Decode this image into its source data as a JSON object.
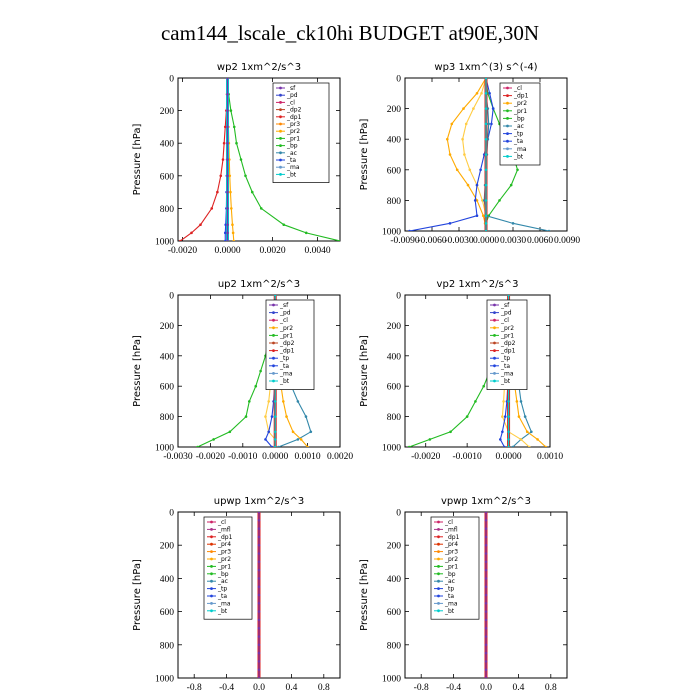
{
  "figure_title": "cam144_lscale_ck10hi  BUDGET at90E,30N",
  "chart_data": [
    {
      "type": "line",
      "title": "wp2   1xm^2/s^3",
      "ylabel": "Pressure [hPa]",
      "xlim": [
        -0.0022,
        0.005
      ],
      "ylim": [
        1000,
        0
      ],
      "xticks": [
        -0.002,
        0,
        0.002,
        0.004
      ],
      "xtick_labels": [
        "-0.0020",
        "0.0000",
        "0.0020",
        "0.0040"
      ],
      "yticks": [
        0,
        200,
        400,
        600,
        800,
        1000
      ],
      "legend": [
        "_sf",
        "_pd",
        "_cl",
        "_dp2",
        "_dp1",
        "_pr3",
        "_pr2",
        "_pr1",
        "_bp",
        "_ac",
        "_ta",
        "_ma",
        "_bt"
      ],
      "y": [
        0,
        100,
        200,
        300,
        400,
        500,
        600,
        700,
        800,
        900,
        950,
        1000
      ],
      "series": [
        {
          "name": "_pr1",
          "color": "#22bb22",
          "values": [
            0,
            5e-05,
            0.00015,
            0.0003,
            0.0004,
            0.0006,
            0.0008,
            0.0011,
            0.0015,
            0.0025,
            0.0035,
            0.005
          ]
        },
        {
          "name": "_dp1",
          "color": "#dd2222",
          "values": [
            0,
            -2e-05,
            -5e-05,
            -0.0001,
            -0.00015,
            -0.0002,
            -0.0003,
            -0.00045,
            -0.0007,
            -0.0012,
            -0.0016,
            -0.0021
          ]
        },
        {
          "name": "_pr3",
          "color": "#ffaa00",
          "values": [
            0,
            1e-05,
            2e-05,
            4e-05,
            6e-05,
            8e-05,
            0.0001,
            0.00013,
            0.00017,
            0.00022,
            0.00025,
            0.00028
          ]
        },
        {
          "name": "_ta",
          "color": "#2244dd",
          "values": [
            0,
            0,
            0,
            -1e-05,
            -1e-05,
            -2e-05,
            -3e-05,
            -4e-05,
            -5e-05,
            -8e-05,
            -0.0001,
            -0.0001
          ]
        },
        {
          "name": "_cl",
          "color": "#cc2266",
          "values": [
            0,
            0,
            0,
            0,
            0,
            0,
            0,
            0,
            0,
            0,
            0,
            0
          ]
        },
        {
          "name": "_bt",
          "color": "#00cccc",
          "values": [
            0,
            0,
            0,
            0,
            0,
            0,
            0,
            0,
            0,
            0,
            0,
            0
          ]
        },
        {
          "name": "_sf",
          "color": "#7733aa",
          "values": [
            0,
            0,
            0,
            0,
            0,
            0,
            0,
            0,
            0,
            0,
            0,
            0
          ]
        }
      ]
    },
    {
      "type": "line",
      "title": "wp3   1xm^(3) s^(-4)",
      "ylabel": "Pressure [hPa]",
      "xlim": [
        -0.009,
        0.009
      ],
      "ylim": [
        1000,
        0
      ],
      "xticks": [
        -0.009,
        -0.006,
        -0.003,
        0,
        0.003,
        0.006,
        0.009
      ],
      "xtick_labels": [
        "-0.0090",
        "-0.0060",
        "-0.0030",
        "0.0000",
        "0.0030",
        "0.0060",
        "0.0090"
      ],
      "yticks": [
        0,
        200,
        400,
        600,
        800,
        1000
      ],
      "legend": [
        "_cl",
        "_dp1",
        "_pr2",
        "_pr1",
        "_bp",
        "_ac",
        "_tp",
        "_ta",
        "_ma",
        "_bt"
      ],
      "y": [
        0,
        100,
        200,
        300,
        400,
        500,
        600,
        700,
        800,
        900,
        950,
        1000
      ],
      "series": [
        {
          "name": "_bp",
          "color": "#22bb22",
          "values": [
            0,
            0.0002,
            0.0008,
            0.0015,
            0.0022,
            0.003,
            0.0035,
            0.0028,
            0.0015,
            0.0003,
            0,
            0
          ]
        },
        {
          "name": "_pr2",
          "color": "#ffaa00",
          "values": [
            0,
            -0.001,
            -0.0025,
            -0.0038,
            -0.0043,
            -0.004,
            -0.0032,
            -0.002,
            -0.001,
            -0.0003,
            -0.0001,
            0
          ]
        },
        {
          "name": "_pr1",
          "color": "#ffcc44",
          "values": [
            0,
            -0.0005,
            -0.0014,
            -0.0022,
            -0.0026,
            -0.0024,
            -0.0018,
            -0.001,
            -0.0004,
            0,
            0,
            0
          ]
        },
        {
          "name": "_tp",
          "color": "#2244dd",
          "values": [
            0,
            0.0004,
            0.0008,
            0.0006,
            0.0002,
            -0.0002,
            -0.0006,
            -0.001,
            -0.0012,
            -0.001,
            -0.004,
            -0.0085
          ]
        },
        {
          "name": "_ac",
          "color": "#3388aa",
          "values": [
            0,
            0,
            0.0002,
            0.0003,
            0.0002,
            0.0001,
            0,
            -0.0001,
            -0.0002,
            0,
            0.003,
            0.007
          ]
        },
        {
          "name": "_dp1",
          "color": "#dd2222",
          "values": [
            0,
            0,
            0,
            0,
            0,
            0,
            0,
            0,
            0,
            0,
            0,
            0
          ]
        },
        {
          "name": "_bt",
          "color": "#00cccc",
          "values": [
            0,
            0,
            0,
            0,
            0,
            0,
            0,
            0,
            0,
            0,
            0,
            0
          ]
        }
      ]
    },
    {
      "type": "line",
      "title": "up2   1xm^2/s^3",
      "ylabel": "Pressure [hPa]",
      "xlim": [
        -0.003,
        0.002
      ],
      "ylim": [
        1000,
        0
      ],
      "xticks": [
        -0.003,
        -0.002,
        -0.001,
        0,
        0.001,
        0.002
      ],
      "xtick_labels": [
        "-0.0030",
        "-0.0020",
        "-0.0010",
        "0.0000",
        "0.0010",
        "0.0020"
      ],
      "yticks": [
        0,
        200,
        400,
        600,
        800,
        1000
      ],
      "legend": [
        "_sf",
        "_pd",
        "_cl",
        "_pr2",
        "_pr1",
        "_dp2",
        "_dp1",
        "_tp",
        "_ta",
        "_ma",
        "_bt"
      ],
      "y": [
        0,
        100,
        200,
        300,
        400,
        500,
        600,
        700,
        800,
        900,
        950,
        1000
      ],
      "series": [
        {
          "name": "_dp1",
          "color": "#22bb22",
          "values": [
            0,
            -3e-05,
            -0.0001,
            -0.0002,
            -0.0003,
            -0.00045,
            -0.0006,
            -0.0008,
            -0.0009,
            -0.0014,
            -0.0019,
            -0.0024
          ]
        },
        {
          "name": "_tp",
          "color": "#3388aa",
          "values": [
            0,
            3e-05,
            0.0001,
            0.00018,
            0.00025,
            0.00035,
            0.0005,
            0.0007,
            0.00095,
            0.0011,
            0.0007,
            0.0001
          ]
        },
        {
          "name": "_pr2",
          "color": "#ffaa00",
          "values": [
            0,
            1e-05,
            3e-05,
            5e-05,
            8e-05,
            0.00012,
            0.00018,
            0.00025,
            0.00035,
            0.00055,
            0.0008,
            0.001
          ]
        },
        {
          "name": "_pr1",
          "color": "#ffcc44",
          "values": [
            0,
            -1e-05,
            -2e-05,
            -4e-05,
            -6e-05,
            -0.0001,
            -0.00015,
            -0.0002,
            -0.0003,
            -0.0002,
            0,
            0
          ]
        },
        {
          "name": "_ta",
          "color": "#2244dd",
          "values": [
            0,
            0,
            0,
            0,
            0,
            0,
            -2e-05,
            -5e-05,
            -0.0001,
            -0.0002,
            -0.0003,
            -0.0001
          ]
        },
        {
          "name": "_cl",
          "color": "#dd2222",
          "values": [
            0,
            0,
            0,
            0,
            0,
            0,
            0,
            0,
            0,
            0,
            0,
            0
          ]
        },
        {
          "name": "_bt",
          "color": "#00cccc",
          "values": [
            0,
            0,
            0,
            0,
            0,
            0,
            0,
            0,
            0,
            0,
            0,
            0
          ]
        }
      ]
    },
    {
      "type": "line",
      "title": "vp2   1xm^2/s^3",
      "ylabel": "Pressure [hPa]",
      "xlim": [
        -0.0025,
        0.001
      ],
      "ylim": [
        1000,
        0
      ],
      "xticks": [
        -0.002,
        -0.001,
        0,
        0.001
      ],
      "xtick_labels": [
        "-0.0020",
        "-0.0010",
        "0.0000",
        "0.0010"
      ],
      "yticks": [
        0,
        200,
        400,
        600,
        800,
        1000
      ],
      "legend": [
        "_sf",
        "_pd",
        "_cl",
        "_pr2",
        "_pr1",
        "_dp2",
        "_dp1",
        "_tp",
        "_ta",
        "_ma",
        "_bt"
      ],
      "y": [
        0,
        100,
        200,
        300,
        400,
        500,
        600,
        700,
        800,
        900,
        950,
        1000
      ],
      "series": [
        {
          "name": "_dp1",
          "color": "#22bb22",
          "values": [
            0,
            -3e-05,
            -0.0001,
            -0.0002,
            -0.0003,
            -0.00045,
            -0.0006,
            -0.0008,
            -0.001,
            -0.0014,
            -0.0019,
            -0.0024
          ]
        },
        {
          "name": "_tp",
          "color": "#3388aa",
          "values": [
            0,
            2e-05,
            5e-05,
            0.0001,
            0.00015,
            0.0002,
            0.00025,
            0.0003,
            0.0004,
            0.00055,
            0.0003,
            0.0001
          ]
        },
        {
          "name": "_pr2",
          "color": "#ffaa00",
          "values": [
            0,
            1e-05,
            2e-05,
            4e-05,
            6e-05,
            0.0001,
            0.00015,
            0.0002,
            0.00025,
            0.00045,
            0.0007,
            0.0009
          ]
        },
        {
          "name": "_pr1",
          "color": "#ffcc44",
          "values": [
            0,
            -1e-05,
            -2e-05,
            -4e-05,
            -6e-05,
            -8e-05,
            -0.0001,
            -0.00012,
            -0.00015,
            0,
            0.0003,
            0.0005
          ]
        },
        {
          "name": "_ta",
          "color": "#2244dd",
          "values": [
            0,
            0,
            0,
            0,
            0,
            0,
            -2e-05,
            -4e-05,
            -8e-05,
            -0.00015,
            -0.0002,
            -0.0001
          ]
        },
        {
          "name": "_cl",
          "color": "#dd2222",
          "values": [
            0,
            0,
            0,
            0,
            0,
            0,
            0,
            0,
            0,
            0,
            0,
            0
          ]
        },
        {
          "name": "_bt",
          "color": "#00cccc",
          "values": [
            0,
            0,
            0,
            0,
            0,
            0,
            0,
            0,
            0,
            0,
            0,
            0
          ]
        }
      ]
    },
    {
      "type": "line",
      "title": "upwp   1xm^2/s^3",
      "ylabel": "Pressure [hPa]",
      "xlim": [
        -1,
        1
      ],
      "ylim": [
        1000,
        0
      ],
      "xticks": [
        -0.8,
        -0.4,
        0,
        0.4,
        0.8
      ],
      "xtick_labels": [
        "-0.8",
        "-0.4",
        "0.0",
        "0.4",
        "0.8"
      ],
      "yticks": [
        0,
        200,
        400,
        600,
        800,
        1000
      ],
      "legend": [
        "_cl",
        "_mfl",
        "_dp1",
        "_pr4",
        "_pr3",
        "_pr2",
        "_pr1",
        "_bp",
        "_ac",
        "_tp",
        "_ta",
        "_ma",
        "_bt"
      ],
      "y": [
        0,
        50,
        100,
        150,
        200,
        250,
        300,
        350,
        400,
        450,
        500,
        550,
        600,
        650,
        700,
        750,
        800,
        850,
        900,
        950,
        1000
      ],
      "series": [
        {
          "name": "_dp1",
          "color": "#dd2222",
          "values": [
            0,
            0,
            0,
            0,
            0,
            0,
            0,
            0,
            0,
            0,
            0,
            0,
            0,
            0,
            0,
            0,
            0,
            0,
            0,
            0,
            0
          ]
        },
        {
          "name": "_cl",
          "color": "#7733aa",
          "values": [
            0,
            0,
            0,
            0,
            0,
            0,
            0,
            0,
            0,
            0,
            0,
            0,
            0,
            0,
            0,
            0,
            0,
            0,
            0,
            0,
            0
          ]
        }
      ]
    },
    {
      "type": "line",
      "title": "vpwp   1xm^2/s^3",
      "ylabel": "Pressure [hPa]",
      "xlim": [
        -1,
        1
      ],
      "ylim": [
        1000,
        0
      ],
      "xticks": [
        -0.8,
        -0.4,
        0,
        0.4,
        0.8
      ],
      "xtick_labels": [
        "-0.8",
        "-0.4",
        "0.0",
        "0.4",
        "0.8"
      ],
      "yticks": [
        0,
        200,
        400,
        600,
        800,
        1000
      ],
      "legend": [
        "_cl",
        "_mfl",
        "_dp1",
        "_pr4",
        "_pr3",
        "_pr2",
        "_pr1",
        "_bp",
        "_ac",
        "_tp",
        "_ta",
        "_ma",
        "_bt"
      ],
      "y": [
        0,
        50,
        100,
        150,
        200,
        250,
        300,
        350,
        400,
        450,
        500,
        550,
        600,
        650,
        700,
        750,
        800,
        850,
        900,
        950,
        1000
      ],
      "series": [
        {
          "name": "_dp1",
          "color": "#dd2222",
          "values": [
            0,
            0,
            0,
            0,
            0,
            0,
            0,
            0,
            0,
            0,
            0,
            0,
            0,
            0,
            0,
            0,
            0,
            0,
            0,
            0,
            0
          ]
        },
        {
          "name": "_cl",
          "color": "#7733aa",
          "values": [
            0,
            0,
            0,
            0,
            0,
            0,
            0,
            0,
            0,
            0,
            0,
            0,
            0,
            0,
            0,
            0,
            0,
            0,
            0,
            0,
            0
          ]
        }
      ]
    }
  ]
}
